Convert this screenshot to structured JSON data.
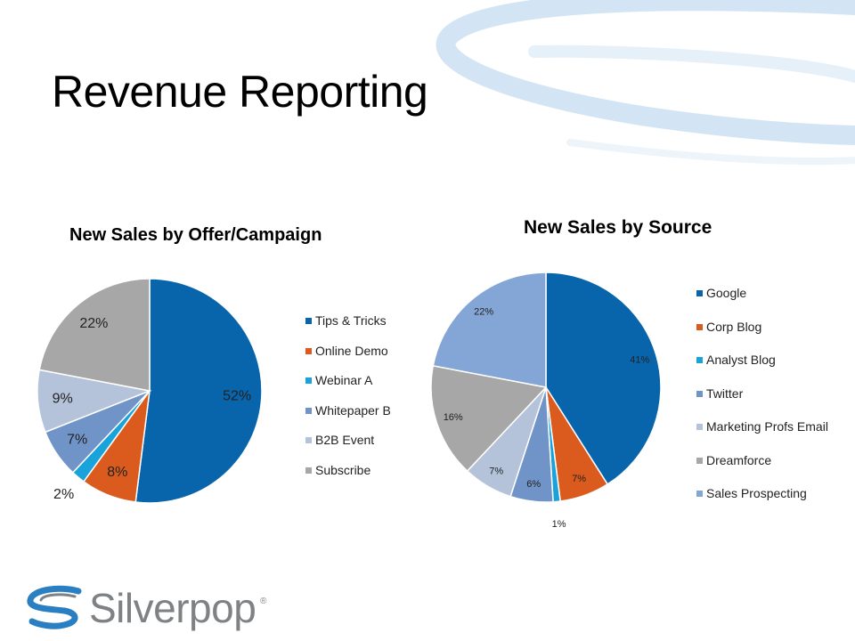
{
  "slide": {
    "title": "Revenue Reporting"
  },
  "logo": {
    "name": "Silverpop",
    "registered": "®"
  },
  "colors": {
    "deco_swoosh": "#b9d6ee",
    "deco_swoosh_light": "#e4eff8",
    "logo_blue": "#2a7fc3",
    "logo_gray": "#7f8285"
  },
  "chart_data": [
    {
      "type": "pie",
      "title": "New Sales by Offer/Campaign",
      "legend_position": "right",
      "slices": [
        {
          "name": "Tips & Tricks",
          "value": 52,
          "label": "52%",
          "color": "#0864ab"
        },
        {
          "name": "Online Demo",
          "value": 8,
          "label": "8%",
          "color": "#da5b1d"
        },
        {
          "name": "Webinar A",
          "value": 2,
          "label": "2%",
          "color": "#1aa3da"
        },
        {
          "name": "Whitepaper B",
          "value": 7,
          "label": "7%",
          "color": "#7094c7"
        },
        {
          "name": "B2B Event",
          "value": 9,
          "label": "9%",
          "color": "#b4c3da"
        },
        {
          "name": "Subscribe",
          "value": 22,
          "label": "22%",
          "color": "#a7a7a7"
        }
      ]
    },
    {
      "type": "pie",
      "title": "New Sales by Source",
      "legend_position": "right",
      "slices": [
        {
          "name": "Google",
          "value": 41,
          "label": "41%",
          "color": "#0864ab"
        },
        {
          "name": "Corp Blog",
          "value": 7,
          "label": "7%",
          "color": "#da5b1d"
        },
        {
          "name": "Analyst Blog",
          "value": 1,
          "label": "1%",
          "color": "#1aa3da"
        },
        {
          "name": "Twitter",
          "value": 6,
          "label": "6%",
          "color": "#7094c7"
        },
        {
          "name": "Marketing Profs Email",
          "value": 7,
          "label": "7%",
          "color": "#b4c3da"
        },
        {
          "name": "Dreamforce",
          "value": 16,
          "label": "16%",
          "color": "#a7a7a7"
        },
        {
          "name": "Sales Prospecting",
          "value": 22,
          "label": "22%",
          "color": "#84a6d6"
        }
      ]
    }
  ]
}
